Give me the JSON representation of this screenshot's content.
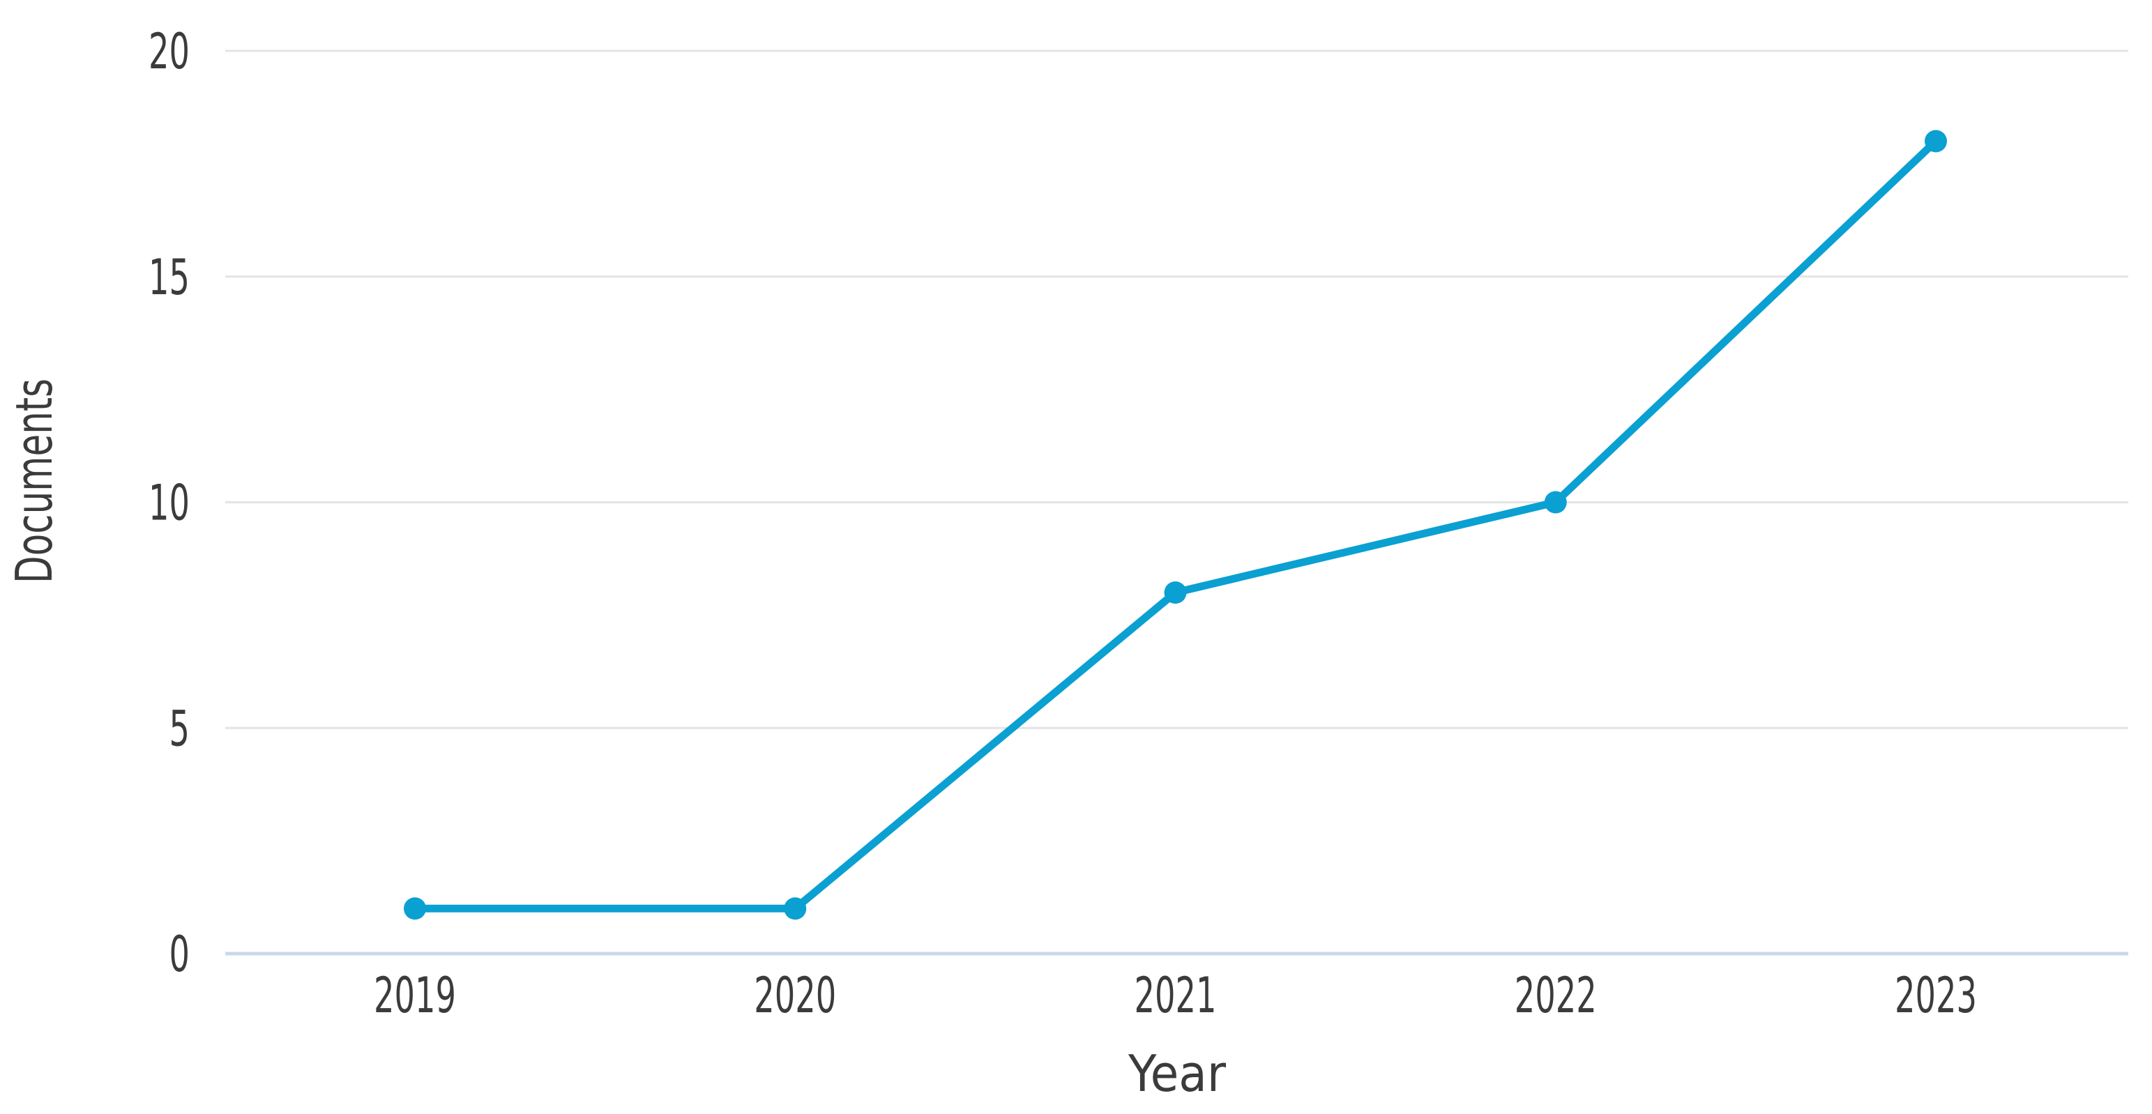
{
  "chart_data": {
    "type": "line",
    "title": "",
    "categories": [
      "2019",
      "2020",
      "2021",
      "2022",
      "2023"
    ],
    "series": [
      {
        "name": "Documents",
        "values": [
          1,
          1,
          8,
          10,
          18
        ]
      }
    ],
    "xlabel": "Year",
    "ylabel": "Documents",
    "yticks": [
      0,
      5,
      10,
      15,
      20
    ],
    "ylim": [
      0,
      20
    ],
    "grid": true,
    "legend": "none",
    "colors": {
      "line": "#0aa0d2",
      "marker": "#0aa0d2",
      "gridline": "#e4e4e4",
      "zero_axis_line": "#ccd7ea",
      "tick_text": "#3b3b3b",
      "axis_title_text": "#3b3b3b",
      "background": "#ffffff"
    }
  }
}
